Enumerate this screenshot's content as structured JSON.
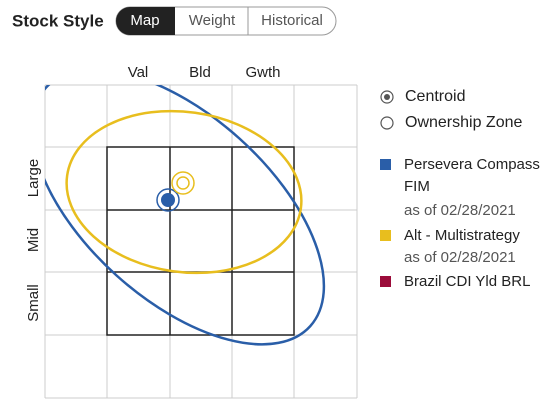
{
  "header": {
    "title": "Stock Style",
    "tabs": [
      "Map",
      "Weight",
      "Historical"
    ]
  },
  "stylebox": {
    "columns": [
      "Val",
      "Bld",
      "Gwth"
    ],
    "rows": [
      "Large",
      "Mid",
      "Small"
    ]
  },
  "legend": {
    "centroid": "Centroid",
    "zone": "Ownership Zone",
    "items": [
      {
        "name": "Persevera Compass FIM",
        "date": "as of 02/28/2021",
        "color": "#2a5ea8"
      },
      {
        "name": "Alt - Multistrategy",
        "date": "as of 02/28/2021",
        "color": "#e8be1e"
      },
      {
        "name": "Brazil CDI Yld BRL",
        "color": "#9b0c3a"
      }
    ]
  }
}
